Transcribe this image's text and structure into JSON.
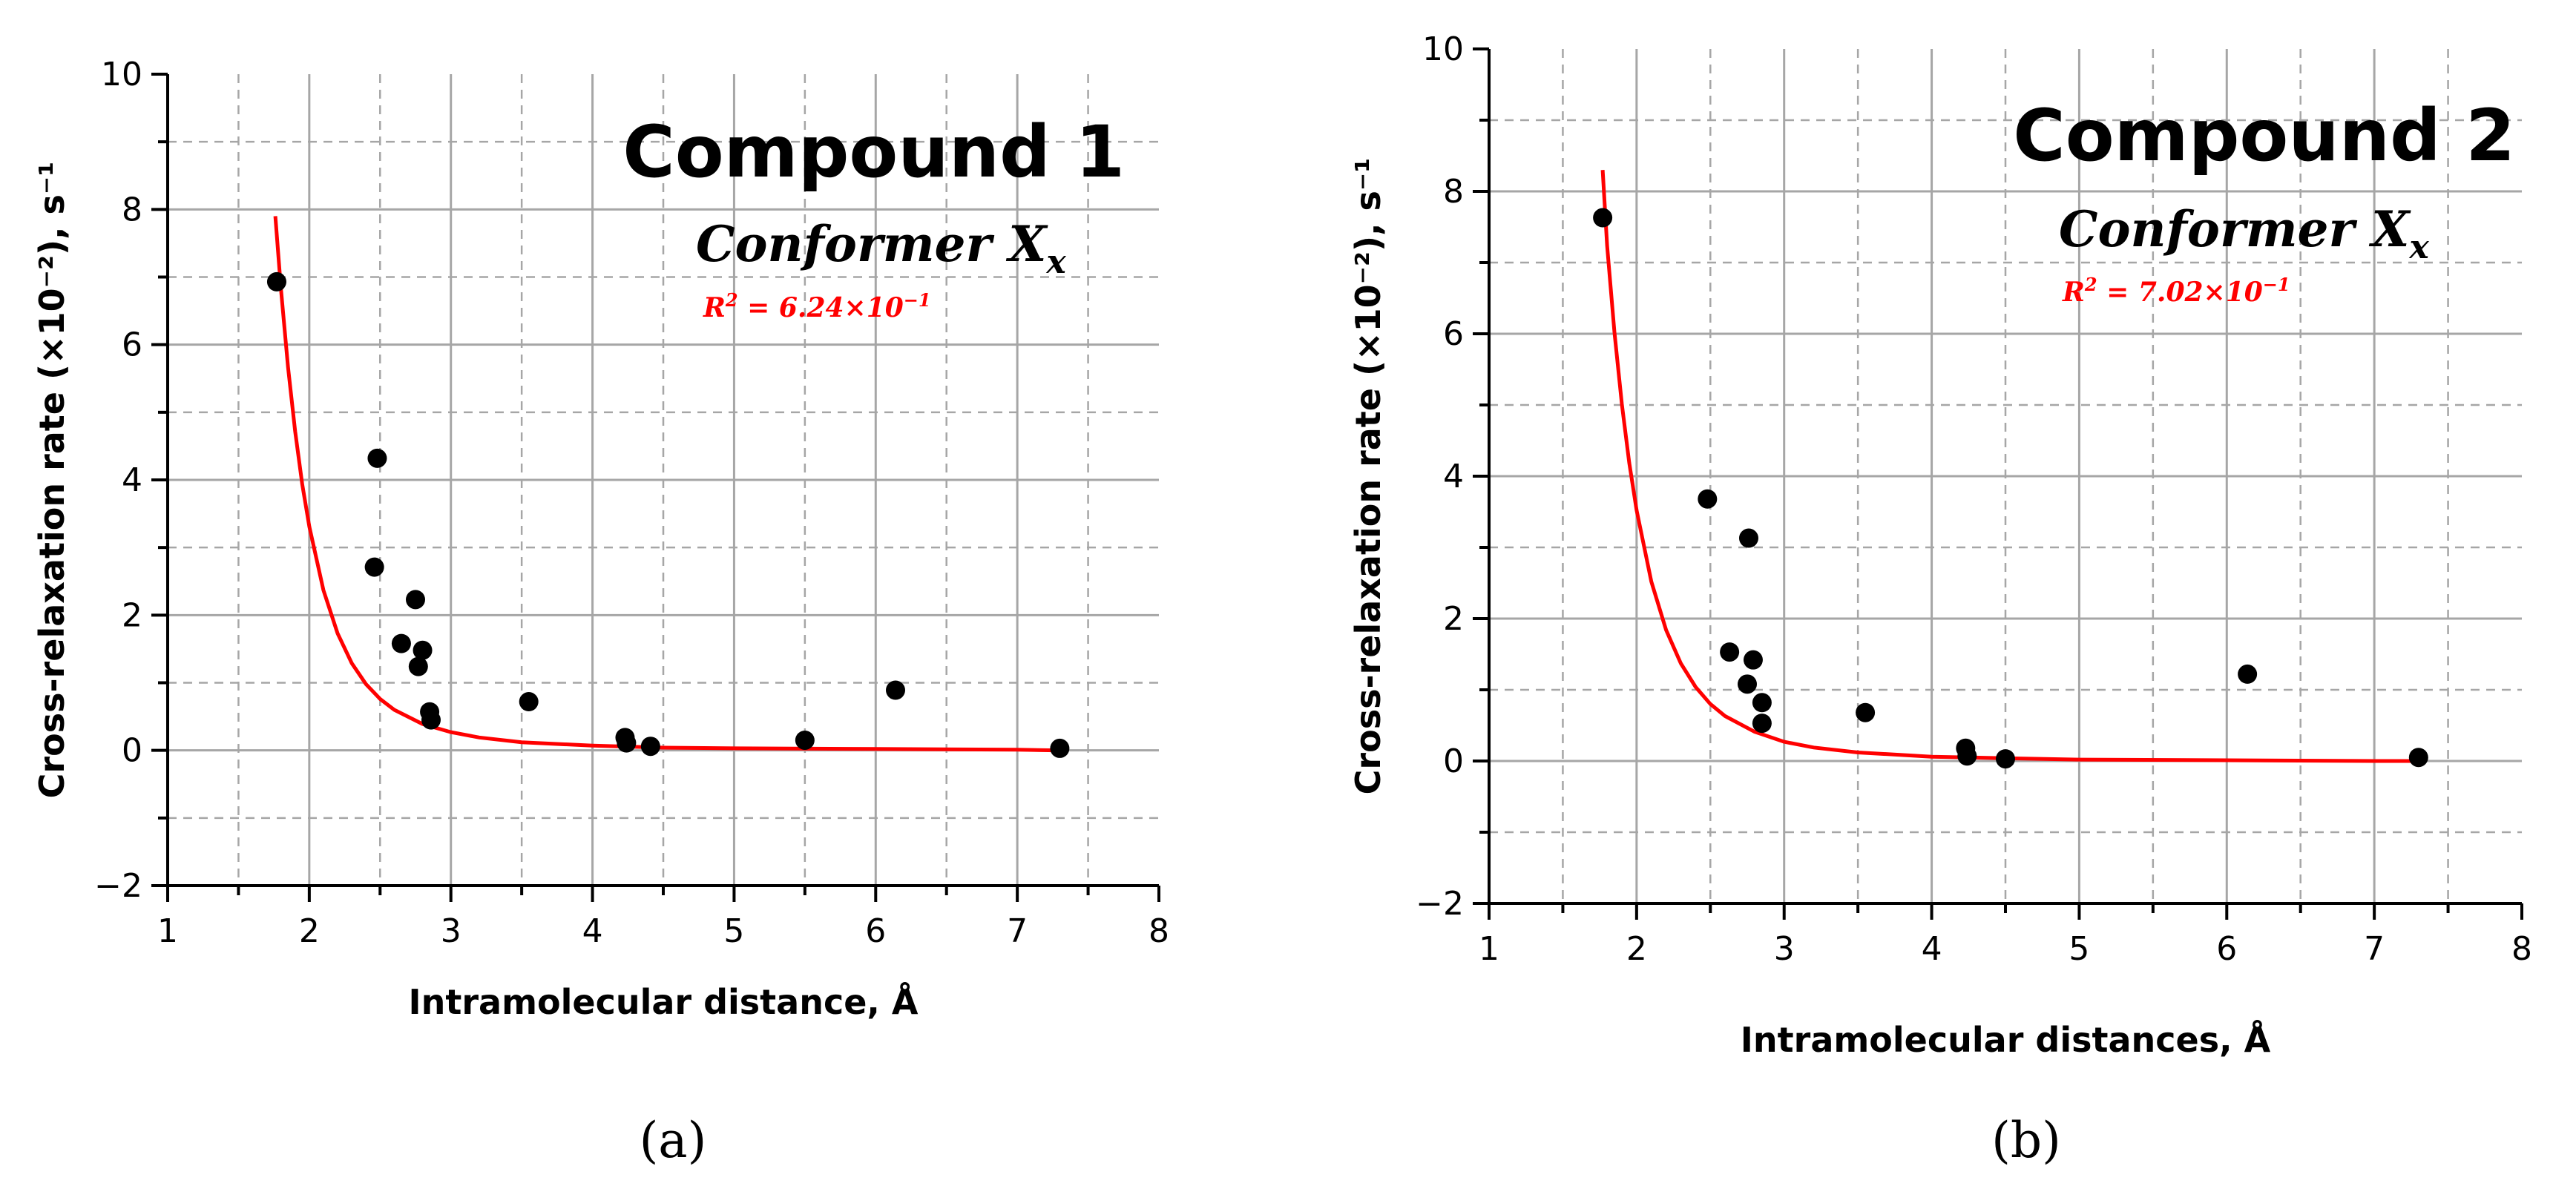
{
  "colors": {
    "fit": "#ff0000",
    "points": "#000000",
    "grid": "#a6a6a6"
  },
  "chart_data": [
    {
      "type": "scatter",
      "panel_label": "(a)",
      "title": "Compound 1",
      "subtitle": {
        "main": "Conformer X",
        "sub": "x"
      },
      "annotation": {
        "lhs": "R",
        "pow": "2",
        "rhs": " = 6.24×10",
        "exp": "−1"
      },
      "xlabel": "Intramolecular distance, Å",
      "ylabel": "Cross-relaxation rate (×10⁻²), s⁻¹",
      "xlim": [
        1,
        8
      ],
      "ylim": [
        -2,
        10
      ],
      "x_ticks": [
        "1",
        "2",
        "3",
        "4",
        "5",
        "6",
        "7",
        "8"
      ],
      "y_ticks": [
        "−2",
        "0",
        "2",
        "4",
        "6",
        "8",
        "10"
      ],
      "grid": true,
      "series": [
        {
          "kind": "points",
          "x": [
            1.77,
            2.46,
            2.48,
            2.65,
            2.75,
            2.77,
            2.8,
            2.85,
            2.86,
            3.55,
            4.23,
            4.24,
            4.41,
            5.5,
            6.14,
            7.3
          ],
          "y": [
            6.93,
            2.71,
            4.32,
            1.58,
            2.23,
            1.24,
            1.48,
            0.57,
            0.45,
            0.72,
            0.19,
            0.11,
            0.06,
            0.15,
            0.89,
            0.03
          ]
        },
        {
          "kind": "fit",
          "x": [
            1.76,
            1.8,
            1.85,
            1.9,
            1.95,
            2.0,
            2.1,
            2.2,
            2.3,
            2.4,
            2.5,
            2.6,
            2.8,
            3.0,
            3.2,
            3.5,
            4.0,
            4.5,
            5.0,
            6.0,
            7.0,
            7.3
          ],
          "y": [
            7.9,
            6.82,
            5.67,
            4.72,
            3.94,
            3.31,
            2.37,
            1.73,
            1.29,
            0.98,
            0.76,
            0.6,
            0.39,
            0.27,
            0.19,
            0.12,
            0.07,
            0.04,
            0.03,
            0.02,
            0.01,
            0.0
          ]
        }
      ]
    },
    {
      "type": "scatter",
      "panel_label": "(b)",
      "title": "Compound 2",
      "subtitle": {
        "main": "Conformer X",
        "sub": "x"
      },
      "annotation": {
        "lhs": "R",
        "pow": "2",
        "rhs": " = 7.02×10",
        "exp": "−1"
      },
      "xlabel": "Intramolecular distances, Å",
      "ylabel": "Cross-relaxation rate (×10⁻²), s⁻¹",
      "xlim": [
        1,
        8
      ],
      "ylim": [
        -2,
        10
      ],
      "x_ticks": [
        "1",
        "2",
        "3",
        "4",
        "5",
        "6",
        "7",
        "8"
      ],
      "y_ticks": [
        "−2",
        "0",
        "2",
        "4",
        "6",
        "8",
        "10"
      ],
      "grid": true,
      "series": [
        {
          "kind": "points",
          "x": [
            1.77,
            2.48,
            2.63,
            2.75,
            2.76,
            2.79,
            2.85,
            2.85,
            3.55,
            4.23,
            4.24,
            4.5,
            6.14,
            7.3
          ],
          "y": [
            7.63,
            3.68,
            1.53,
            1.08,
            3.13,
            1.42,
            0.82,
            0.53,
            0.68,
            0.18,
            0.07,
            0.03,
            1.22,
            0.05
          ]
        },
        {
          "kind": "fit",
          "x": [
            1.77,
            1.8,
            1.85,
            1.9,
            1.95,
            2.0,
            2.1,
            2.2,
            2.3,
            2.4,
            2.5,
            2.6,
            2.8,
            3.0,
            3.2,
            3.5,
            4.0,
            4.5,
            5.0,
            6.0,
            7.0,
            7.3
          ],
          "y": [
            8.3,
            7.24,
            6.02,
            5.01,
            4.19,
            3.52,
            2.52,
            1.84,
            1.37,
            1.04,
            0.8,
            0.63,
            0.41,
            0.27,
            0.19,
            0.12,
            0.06,
            0.04,
            0.02,
            0.01,
            0.0,
            0.0
          ]
        }
      ]
    }
  ]
}
